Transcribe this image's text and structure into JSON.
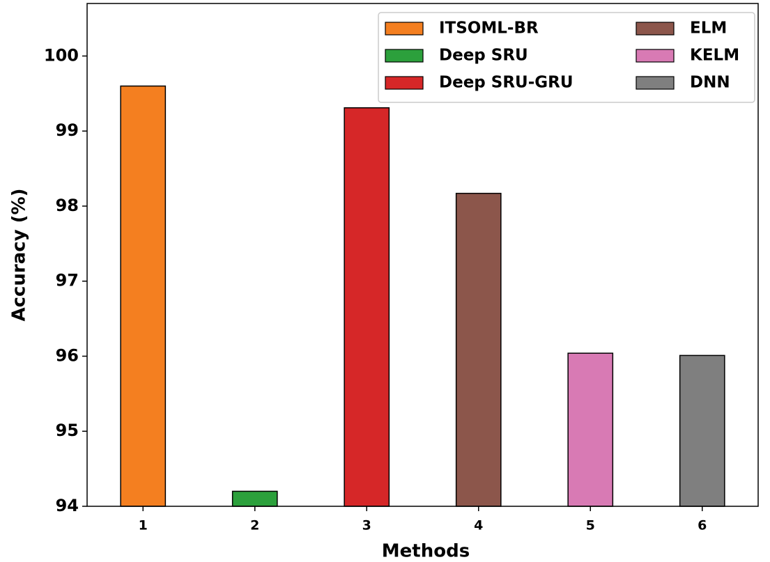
{
  "chart_data": {
    "type": "bar",
    "categories": [
      "1",
      "2",
      "3",
      "4",
      "5",
      "6"
    ],
    "x_label": "Methods",
    "y_label": "Accuracy (%)",
    "series": [
      {
        "name": "ITSOML-BR",
        "color": "#f47f20",
        "values": [
          99.6,
          null,
          null,
          null,
          null,
          null
        ]
      },
      {
        "name": "Deep SRU",
        "color": "#2ca03c",
        "values": [
          null,
          94.2,
          null,
          null,
          null,
          null
        ]
      },
      {
        "name": "Deep SRU-GRU",
        "color": "#d62728",
        "values": [
          null,
          null,
          99.31,
          null,
          null,
          null
        ]
      },
      {
        "name": "ELM",
        "color": "#8c564b",
        "values": [
          null,
          null,
          null,
          98.17,
          null,
          null
        ]
      },
      {
        "name": "KELM",
        "color": "#d87ab4",
        "values": [
          null,
          null,
          null,
          null,
          96.04,
          null
        ]
      },
      {
        "name": "DNN",
        "color": "#7f7f7f",
        "values": [
          null,
          null,
          null,
          null,
          null,
          96.01
        ]
      }
    ],
    "ylim": [
      94,
      100.7
    ],
    "yticks": [
      94,
      95,
      96,
      97,
      98,
      99,
      100
    ],
    "legend": "upper right"
  }
}
